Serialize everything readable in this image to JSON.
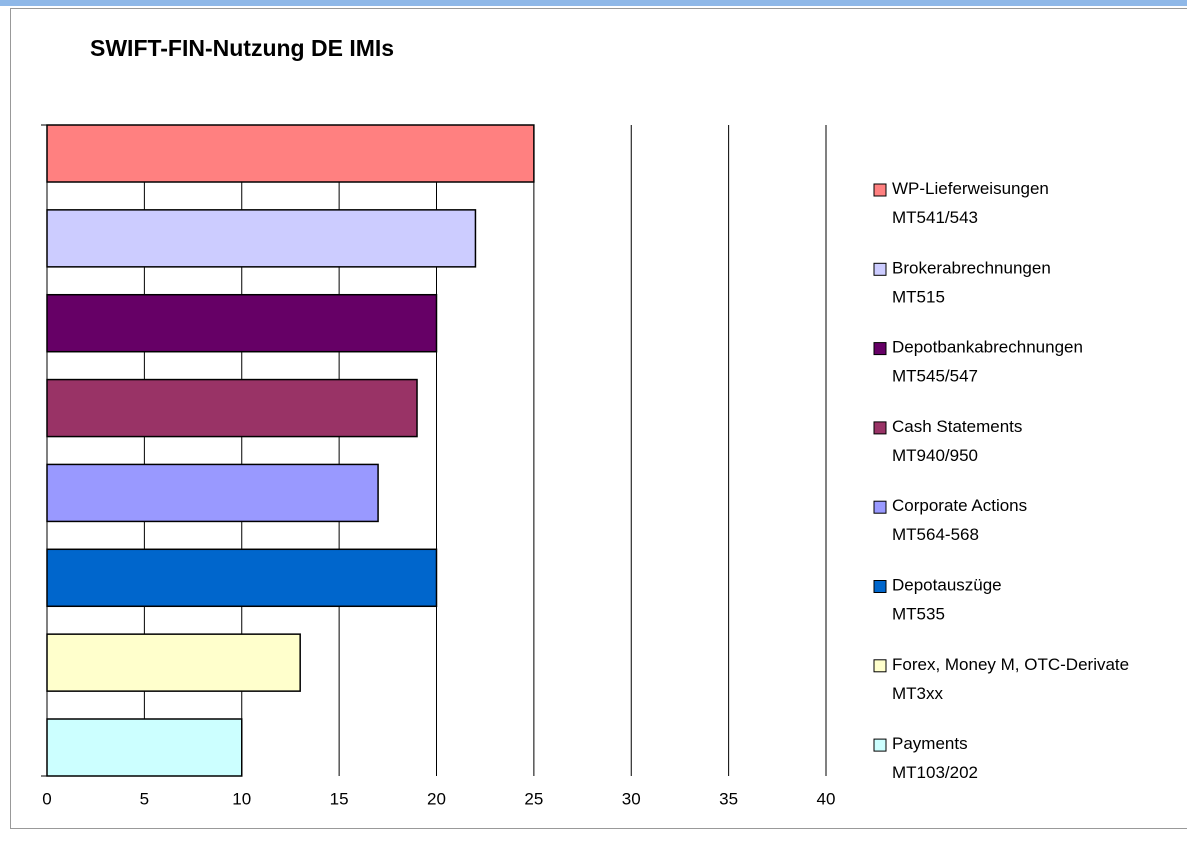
{
  "chart_data": {
    "type": "bar",
    "orientation": "horizontal",
    "title": "SWIFT-FIN-Nutzung DE IMIs",
    "series": [
      {
        "name": "WP-Lieferweisungen MT541/543",
        "color": "#FF8080",
        "values": [
          25
        ]
      },
      {
        "name": "Brokerabrechnungen MT515",
        "color": "#CCCCFF",
        "values": [
          22
        ]
      },
      {
        "name": "Depotbankabrechnungen MT545/547",
        "color": "#660066",
        "values": [
          20
        ]
      },
      {
        "name": "Cash Statements MT940/950",
        "color": "#993366",
        "values": [
          19
        ]
      },
      {
        "name": "Corporate Actions MT564-568",
        "color": "#9999FF",
        "values": [
          17
        ]
      },
      {
        "name": "Depotauszüge MT535",
        "color": "#0066CC",
        "values": [
          20
        ]
      },
      {
        "name": "Forex, Money M, OTC-Derivate MT3xx",
        "color": "#FFFFCC",
        "values": [
          13
        ]
      },
      {
        "name": "Payments MT103/202",
        "color": "#CCFFFF",
        "values": [
          10
        ]
      }
    ],
    "xlim": [
      0,
      40
    ],
    "xticks": [
      0,
      5,
      10,
      15,
      20,
      25,
      30,
      35,
      40
    ],
    "grid": true,
    "legend": "right"
  }
}
